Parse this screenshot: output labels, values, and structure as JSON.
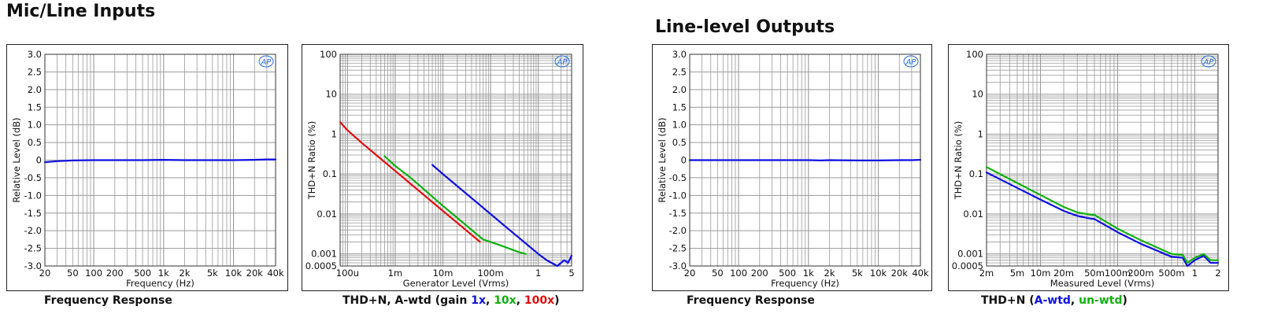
{
  "sections": {
    "left_title": "Mic/Line Inputs",
    "right_title": "Line-level Outputs"
  },
  "captions": {
    "fr1": "Frequency Response",
    "thd1_prefix": "THD+N, A-wtd (gain ",
    "thd1_1x": "1x",
    "thd1_sep1": ", ",
    "thd1_10x": "10x",
    "thd1_sep2": ", ",
    "thd1_100x": "100x",
    "thd1_suffix": ")",
    "fr2": "Frequency Response",
    "thd2_prefix": "THD+N (",
    "thd2_awtd": "A-wtd",
    "thd2_sep": ", ",
    "thd2_unwtd": "un-wtd",
    "thd2_suffix": ")"
  },
  "logo": "AP",
  "colors": {
    "blue": "#1010e0",
    "green": "#10b010",
    "red": "#e01010",
    "grid": "#9a9a9a"
  },
  "chart_data": [
    {
      "id": "fr-inputs",
      "type": "line",
      "xscale": "log",
      "xlabel": "Frequency (Hz)",
      "ylabel": "Relative Level (dB)",
      "xlim": [
        20,
        40000
      ],
      "ylim": [
        -3.0,
        3.0
      ],
      "xticks": [
        {
          "v": 20,
          "l": "20"
        },
        {
          "v": 50,
          "l": "50"
        },
        {
          "v": 100,
          "l": "100"
        },
        {
          "v": 200,
          "l": "200"
        },
        {
          "v": 500,
          "l": "500"
        },
        {
          "v": 1000,
          "l": "1k"
        },
        {
          "v": 2000,
          "l": "2k"
        },
        {
          "v": 5000,
          "l": "5k"
        },
        {
          "v": 10000,
          "l": "10k"
        },
        {
          "v": 20000,
          "l": "20k"
        },
        {
          "v": 40000,
          "l": "40k"
        }
      ],
      "yticks": [
        {
          "v": 3,
          "l": "3.0"
        },
        {
          "v": 2.5,
          "l": "2.5"
        },
        {
          "v": 2,
          "l": "2.0"
        },
        {
          "v": 1.5,
          "l": "1.5"
        },
        {
          "v": 1,
          "l": "1.0"
        },
        {
          "v": 0.5,
          "l": "0.5"
        },
        {
          "v": 0,
          "l": "0"
        },
        {
          "v": -0.5,
          "l": "-0.5"
        },
        {
          "v": -1,
          "l": "-1.0"
        },
        {
          "v": -1.5,
          "l": "-1.5"
        },
        {
          "v": -2,
          "l": "-2.0"
        },
        {
          "v": -2.5,
          "l": "-2.5"
        },
        {
          "v": -3,
          "l": "-3.0"
        }
      ],
      "series": [
        {
          "color": "#1010e0",
          "x": [
            20,
            30,
            50,
            100,
            200,
            500,
            1000,
            2000,
            5000,
            10000,
            20000,
            30000,
            40000
          ],
          "y": [
            -0.06,
            -0.03,
            -0.01,
            0,
            0,
            0,
            0.01,
            0,
            0,
            0,
            0.01,
            0.02,
            0.02
          ]
        }
      ]
    },
    {
      "id": "thd-inputs",
      "type": "line",
      "xscale": "log",
      "yscale": "log",
      "xlabel": "Generator Level (Vrms)",
      "ylabel": "THD+N Ratio (%)",
      "xlim": [
        7e-05,
        5
      ],
      "ylim": [
        0.0005,
        100
      ],
      "xticks": [
        {
          "v": 0.0001,
          "l": "100u"
        },
        {
          "v": 0.001,
          "l": "1m"
        },
        {
          "v": 0.01,
          "l": "10m"
        },
        {
          "v": 0.1,
          "l": "100m"
        },
        {
          "v": 1,
          "l": "1"
        },
        {
          "v": 5,
          "l": "5"
        }
      ],
      "yticks": [
        {
          "v": 100,
          "l": "100"
        },
        {
          "v": 10,
          "l": "10"
        },
        {
          "v": 1,
          "l": "1"
        },
        {
          "v": 0.1,
          "l": "0.1"
        },
        {
          "v": 0.01,
          "l": "0.01"
        },
        {
          "v": 0.001,
          "l": "0.001"
        },
        {
          "v": 0.0005,
          "l": "0.0005"
        }
      ],
      "series": [
        {
          "name": "1x",
          "color": "#1010e0",
          "x": [
            0.006,
            0.01,
            0.02,
            0.05,
            0.1,
            0.2,
            0.5,
            1,
            1.5,
            2.5,
            3.5,
            4.2,
            5
          ],
          "y": [
            0.17,
            0.1,
            0.05,
            0.02,
            0.01,
            0.005,
            0.002,
            0.001,
            0.0007,
            0.0005,
            0.0007,
            0.0006,
            0.0009
          ]
        },
        {
          "name": "10x",
          "color": "#10b010",
          "x": [
            0.0006,
            0.001,
            0.002,
            0.005,
            0.01,
            0.02,
            0.05,
            0.07,
            0.1,
            0.2,
            0.4,
            0.55
          ],
          "y": [
            0.28,
            0.16,
            0.085,
            0.033,
            0.016,
            0.008,
            0.0032,
            0.0023,
            0.002,
            0.0015,
            0.0011,
            0.001
          ]
        },
        {
          "name": "100x",
          "color": "#e01010",
          "x": [
            7e-05,
            0.0001,
            0.0002,
            0.0005,
            0.001,
            0.002,
            0.005,
            0.01,
            0.02,
            0.05,
            0.06
          ],
          "y": [
            2.0,
            1.25,
            0.6,
            0.24,
            0.12,
            0.06,
            0.024,
            0.012,
            0.006,
            0.0024,
            0.002
          ]
        }
      ]
    },
    {
      "id": "fr-outputs",
      "type": "line",
      "xscale": "log",
      "xlabel": "Frequency (Hz)",
      "ylabel": "Relative Level (dB)",
      "xlim": [
        20,
        40000
      ],
      "ylim": [
        -3.0,
        3.0
      ],
      "xticks": [
        {
          "v": 20,
          "l": "20"
        },
        {
          "v": 50,
          "l": "50"
        },
        {
          "v": 100,
          "l": "100"
        },
        {
          "v": 200,
          "l": "200"
        },
        {
          "v": 500,
          "l": "500"
        },
        {
          "v": 1000,
          "l": "1k"
        },
        {
          "v": 2000,
          "l": "2k"
        },
        {
          "v": 5000,
          "l": "5k"
        },
        {
          "v": 10000,
          "l": "10k"
        },
        {
          "v": 20000,
          "l": "20k"
        },
        {
          "v": 40000,
          "l": "40k"
        }
      ],
      "yticks": [
        {
          "v": 3,
          "l": "3.0"
        },
        {
          "v": 2.5,
          "l": "2.5"
        },
        {
          "v": 2,
          "l": "2.0"
        },
        {
          "v": 1.5,
          "l": "1.5"
        },
        {
          "v": 1,
          "l": "1.0"
        },
        {
          "v": 0.5,
          "l": "0.5"
        },
        {
          "v": 0,
          "l": "0"
        },
        {
          "v": -0.5,
          "l": "-0.5"
        },
        {
          "v": -1,
          "l": "-1.0"
        },
        {
          "v": -1.5,
          "l": "-1.5"
        },
        {
          "v": -2,
          "l": "-2.0"
        },
        {
          "v": -2.5,
          "l": "-2.5"
        },
        {
          "v": -3,
          "l": "-3.0"
        }
      ],
      "series": [
        {
          "color": "#1010e0",
          "x": [
            20,
            50,
            100,
            200,
            500,
            1000,
            1500,
            2000,
            5000,
            10000,
            20000,
            30000,
            40000
          ],
          "y": [
            0,
            0,
            0,
            0,
            0,
            0,
            -0.01,
            0,
            -0.01,
            -0.01,
            0,
            0,
            0.01
          ]
        }
      ]
    },
    {
      "id": "thd-outputs",
      "type": "line",
      "xscale": "log",
      "yscale": "log",
      "xlabel": "Measured Level (Vrms)",
      "ylabel": "THD+N Ratio (%)",
      "xlim": [
        0.002,
        2
      ],
      "ylim": [
        0.0005,
        100
      ],
      "xticks": [
        {
          "v": 0.002,
          "l": "2m"
        },
        {
          "v": 0.005,
          "l": "5m"
        },
        {
          "v": 0.01,
          "l": "10m"
        },
        {
          "v": 0.02,
          "l": "20m"
        },
        {
          "v": 0.05,
          "l": "50m"
        },
        {
          "v": 0.1,
          "l": "100m"
        },
        {
          "v": 0.2,
          "l": "200m"
        },
        {
          "v": 0.5,
          "l": "500m"
        },
        {
          "v": 1,
          "l": "1"
        },
        {
          "v": 2,
          "l": "2"
        }
      ],
      "yticks": [
        {
          "v": 100,
          "l": "100"
        },
        {
          "v": 10,
          "l": "10"
        },
        {
          "v": 1,
          "l": "1"
        },
        {
          "v": 0.1,
          "l": "0.1"
        },
        {
          "v": 0.01,
          "l": "0.01"
        },
        {
          "v": 0.001,
          "l": "0.001"
        },
        {
          "v": 0.0005,
          "l": "0.0005"
        }
      ],
      "series": [
        {
          "name": "A-wtd",
          "color": "#1010e0",
          "x": [
            0.002,
            0.005,
            0.01,
            0.02,
            0.03,
            0.04,
            0.05,
            0.1,
            0.2,
            0.5,
            0.7,
            0.8,
            1,
            1.3,
            1.6,
            2
          ],
          "y": [
            0.11,
            0.045,
            0.023,
            0.012,
            0.009,
            0.008,
            0.0075,
            0.0035,
            0.0018,
            0.00085,
            0.0008,
            0.0005,
            0.0007,
            0.0009,
            0.0006,
            0.0006
          ]
        },
        {
          "name": "un-wtd",
          "color": "#10b010",
          "x": [
            0.002,
            0.005,
            0.01,
            0.02,
            0.03,
            0.04,
            0.05,
            0.1,
            0.2,
            0.5,
            0.7,
            0.8,
            1,
            1.3,
            1.6,
            2
          ],
          "y": [
            0.15,
            0.06,
            0.03,
            0.015,
            0.011,
            0.01,
            0.0095,
            0.0043,
            0.0022,
            0.001,
            0.00095,
            0.0006,
            0.0008,
            0.001,
            0.0007,
            0.0007
          ]
        }
      ]
    }
  ]
}
